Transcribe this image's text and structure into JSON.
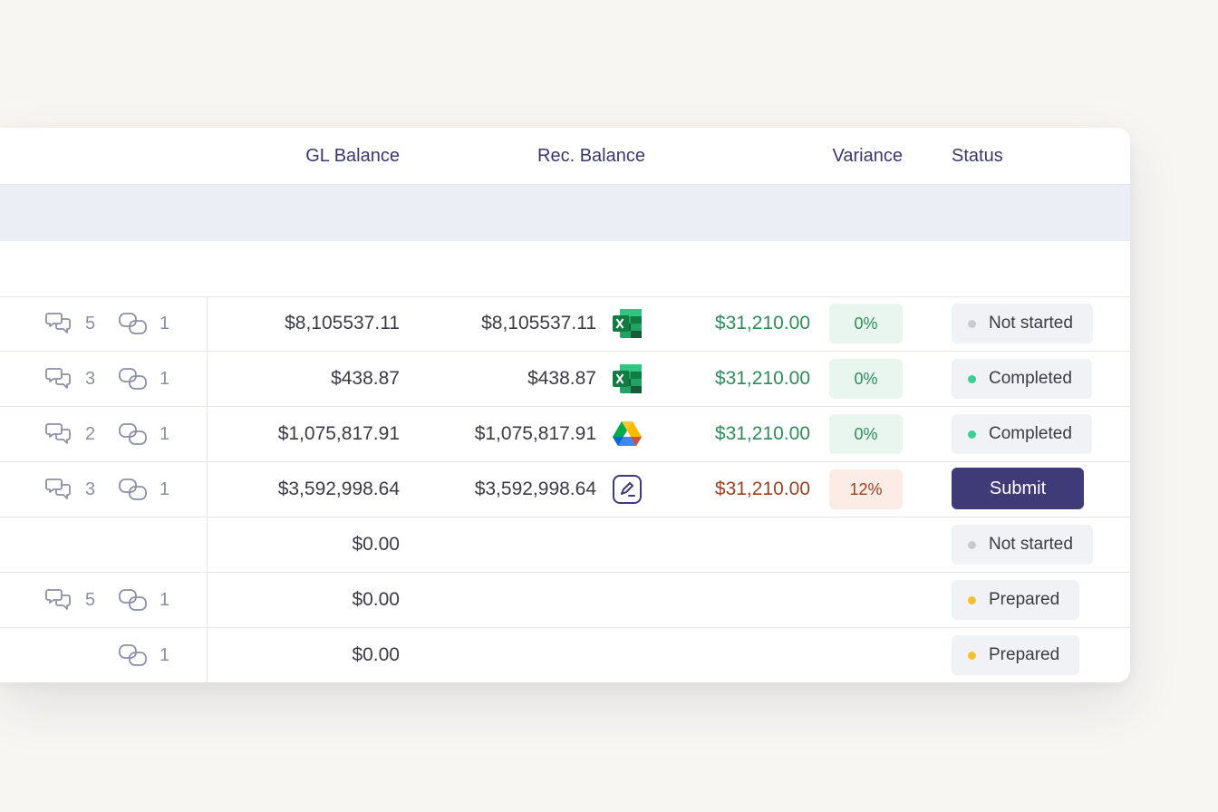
{
  "columns": {
    "gl_balance": "GL Balance",
    "rec_balance": "Rec. Balance",
    "variance": "Variance",
    "status": "Status"
  },
  "colors": {
    "header_text": "#3a3770",
    "positive_variance": "#2e8b5a",
    "negative_variance": "#9b4320",
    "pct_ok_bg": "#e9f6ef",
    "pct_bad_bg": "#fbece5",
    "status_grey": "#c9cad1",
    "status_green": "#3ccf91",
    "status_yellow": "#f7be2f",
    "submit_bg": "#3f3a78"
  },
  "rows": [
    {
      "comments": "5",
      "links": "1",
      "gl": "$8,105537.11",
      "rec": "$8,105537.11",
      "file": "excel-icon",
      "variance": "$31,210.00",
      "variance_type": "positive",
      "pct": "0%",
      "status": "Not started",
      "status_color": "grey",
      "action": ""
    },
    {
      "comments": "3",
      "links": "1",
      "gl": "$438.87",
      "rec": "$438.87",
      "file": "excel-icon",
      "variance": "$31,210.00",
      "variance_type": "positive",
      "pct": "0%",
      "status": "Completed",
      "status_color": "green",
      "action": ""
    },
    {
      "comments": "2",
      "links": "1",
      "gl": "$1,075,817.91",
      "rec": "$1,075,817.91",
      "file": "google-drive-icon",
      "variance": "$31,210.00",
      "variance_type": "positive",
      "pct": "0%",
      "status": "Completed",
      "status_color": "green",
      "action": ""
    },
    {
      "comments": "3",
      "links": "1",
      "gl": "$3,592,998.64",
      "rec": "$3,592,998.64",
      "file": "signature-icon",
      "variance": "$31,210.00",
      "variance_type": "negative",
      "pct": "12%",
      "status": "",
      "status_color": "",
      "action": "Submit"
    },
    {
      "comments": "",
      "links": "",
      "gl": "$0.00",
      "rec": "",
      "file": "",
      "variance": "",
      "variance_type": "",
      "pct": "",
      "status": "Not started",
      "status_color": "grey",
      "action": ""
    },
    {
      "comments": "5",
      "links": "1",
      "gl": "$0.00",
      "rec": "",
      "file": "",
      "variance": "",
      "variance_type": "",
      "pct": "",
      "status": "Prepared",
      "status_color": "yellow",
      "action": ""
    },
    {
      "comments": "",
      "links": "1",
      "gl": "$0.00",
      "rec": "",
      "file": "",
      "variance": "",
      "variance_type": "",
      "pct": "",
      "status": "Prepared",
      "status_color": "yellow",
      "action": ""
    }
  ]
}
